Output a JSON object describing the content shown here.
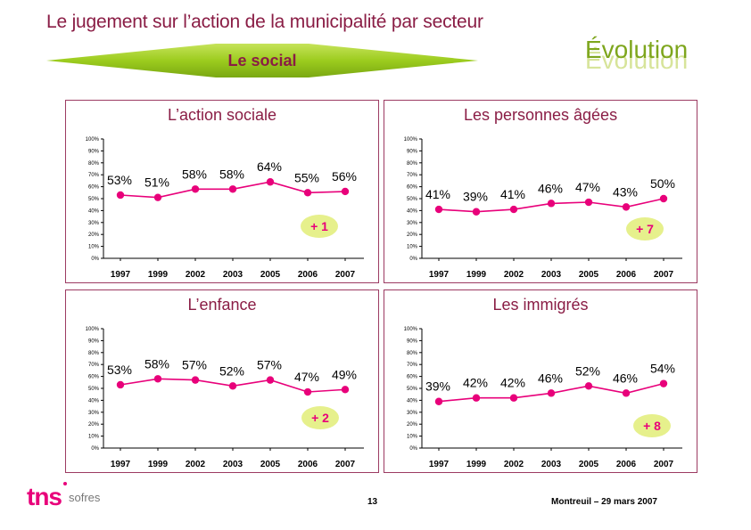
{
  "header": {
    "title": "Le jugement sur l’action de la municipalité par secteur",
    "evolution_label": "Évolution",
    "section_label": "Le social"
  },
  "footer": {
    "logo_main": "tns",
    "logo_sub": "sofres",
    "page_number": "13",
    "location_date": "Montreuil – 29 mars 2007"
  },
  "colors": {
    "title": "#8a1d45",
    "line": "#e8007a",
    "banner": "#9ccc1e",
    "evolution_badge": "#e6f08c",
    "evolution_text": "#7ea61d"
  },
  "chart_data": [
    {
      "type": "line",
      "title": "L’action sociale",
      "categories": [
        "1997",
        "1999",
        "2002",
        "2003",
        "2005",
        "2006",
        "2007"
      ],
      "values": [
        53,
        51,
        58,
        58,
        64,
        55,
        56
      ],
      "labels": [
        "53%",
        "51%",
        "58%",
        "58%",
        "64%",
        "55%",
        "56%"
      ],
      "evolution": "+ 1",
      "ylim": [
        0,
        100
      ],
      "yticks": [
        "0%",
        "10%",
        "20%",
        "30%",
        "40%",
        "50%",
        "60%",
        "70%",
        "80%",
        "90%",
        "100%"
      ]
    },
    {
      "type": "line",
      "title": "Les personnes âgées",
      "categories": [
        "1997",
        "1999",
        "2002",
        "2003",
        "2005",
        "2006",
        "2007"
      ],
      "values": [
        41,
        39,
        41,
        46,
        47,
        43,
        50
      ],
      "labels": [
        "41%",
        "39%",
        "41%",
        "46%",
        "47%",
        "43%",
        "50%"
      ],
      "evolution": "+ 7",
      "ylim": [
        0,
        100
      ],
      "yticks": [
        "0%",
        "10%",
        "20%",
        "30%",
        "40%",
        "50%",
        "60%",
        "70%",
        "80%",
        "90%",
        "100%"
      ]
    },
    {
      "type": "line",
      "title": "L’enfance",
      "categories": [
        "1997",
        "1999",
        "2002",
        "2003",
        "2005",
        "2006",
        "2007"
      ],
      "values": [
        53,
        58,
        57,
        52,
        57,
        47,
        49
      ],
      "labels": [
        "53%",
        "58%",
        "57%",
        "52%",
        "57%",
        "47%",
        "49%"
      ],
      "evolution": "+ 2",
      "ylim": [
        0,
        100
      ],
      "yticks": [
        "0%",
        "10%",
        "20%",
        "30%",
        "40%",
        "50%",
        "60%",
        "70%",
        "80%",
        "90%",
        "100%"
      ]
    },
    {
      "type": "line",
      "title": "Les immigrés",
      "categories": [
        "1997",
        "1999",
        "2002",
        "2003",
        "2005",
        "2006",
        "2007"
      ],
      "values": [
        39,
        42,
        42,
        46,
        52,
        46,
        54
      ],
      "labels": [
        "39%",
        "42%",
        "42%",
        "46%",
        "52%",
        "46%",
        "54%"
      ],
      "evolution": "+ 8",
      "ylim": [
        0,
        100
      ],
      "yticks": [
        "0%",
        "10%",
        "20%",
        "30%",
        "40%",
        "50%",
        "60%",
        "70%",
        "80%",
        "90%",
        "100%"
      ]
    }
  ]
}
